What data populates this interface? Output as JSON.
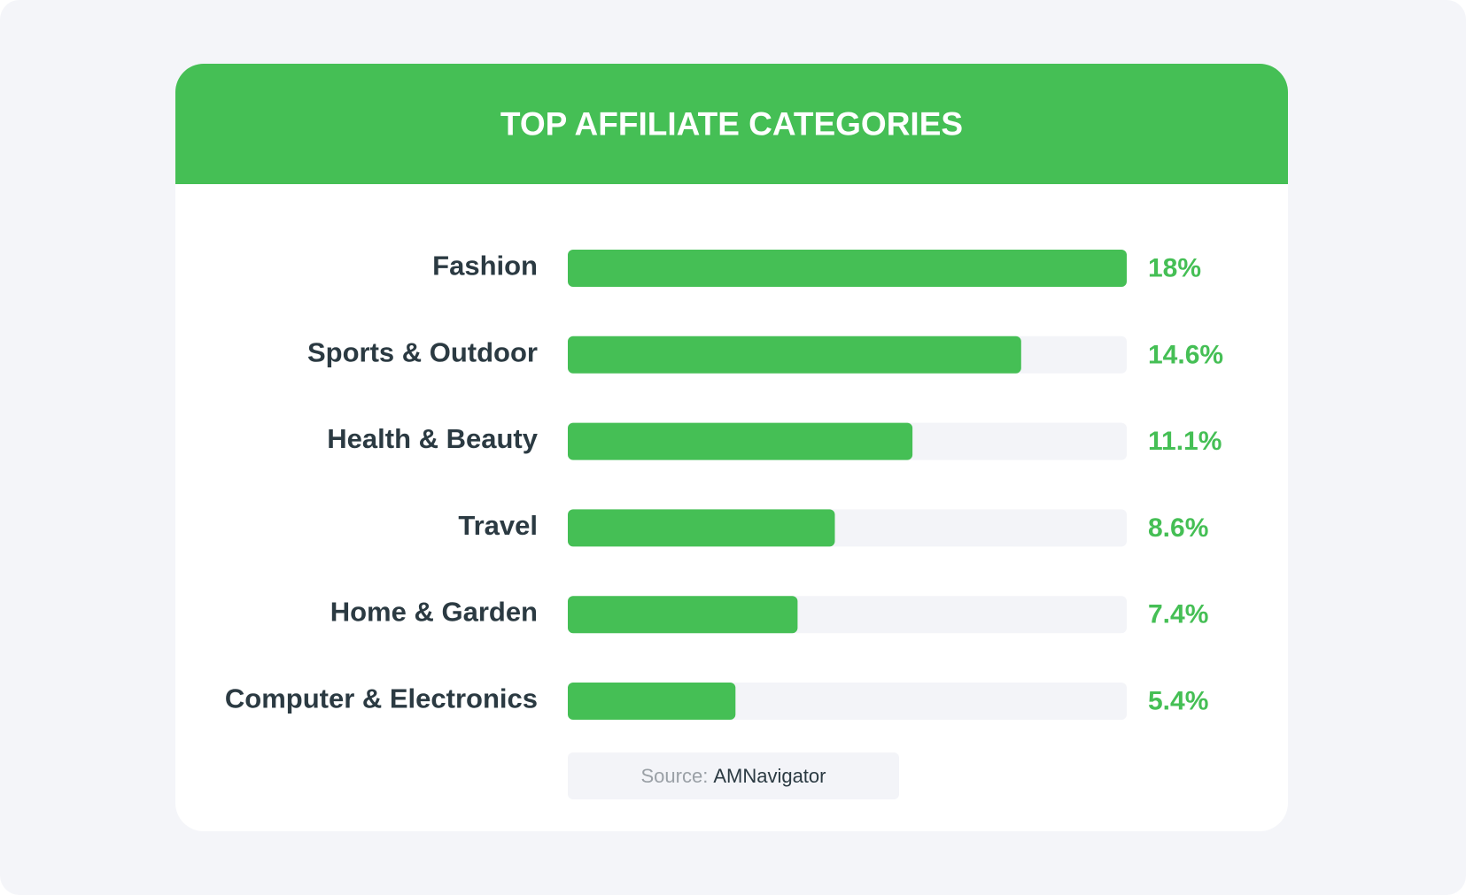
{
  "chart_data": {
    "type": "bar",
    "orientation": "horizontal",
    "title": "TOP AFFILIATE CATEGORIES",
    "categories": [
      "Fashion",
      "Sports & Outdoor",
      "Health & Beauty",
      "Travel",
      "Home & Garden",
      "Computer & Electronics"
    ],
    "values": [
      18,
      14.6,
      11.1,
      8.6,
      7.4,
      5.4
    ],
    "value_labels": [
      "18%",
      "14.6%",
      "11.1%",
      "8.6%",
      "7.4%",
      "5.4%"
    ],
    "color": "#45bf55",
    "xlim": [
      0,
      18
    ],
    "source_label": "Source:",
    "source": "AMNavigator"
  }
}
